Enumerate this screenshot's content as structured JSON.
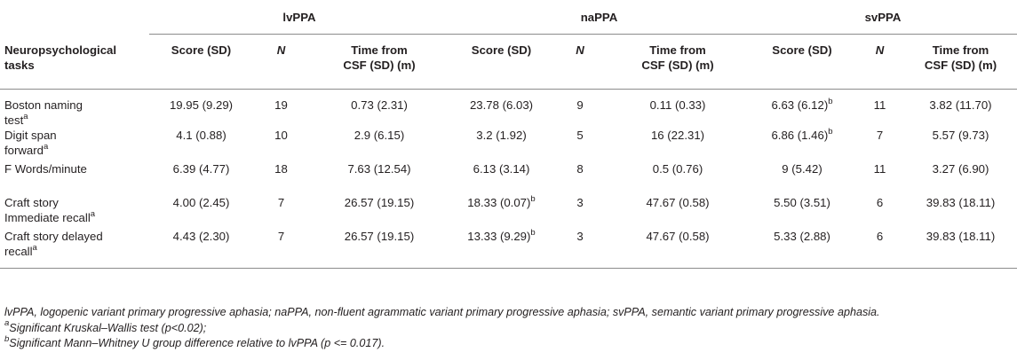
{
  "groups": [
    "lvPPA",
    "naPPA",
    "svPPA"
  ],
  "columns": {
    "task_line1": "Neuropsychological",
    "task_line2": "tasks",
    "score": "Score (SD)",
    "n": "N",
    "time_line1": "Time from",
    "time_line2": "CSF (SD) (m)"
  },
  "rows": [
    {
      "task_line1": "Boston naming",
      "task_line2": "test",
      "task_sup": "a",
      "lv": {
        "score": "19.95 (9.29)",
        "score_sup": "",
        "n": "19",
        "time": "0.73 (2.31)"
      },
      "na": {
        "score": "23.78 (6.03)",
        "score_sup": "",
        "n": "9",
        "time": "0.11 (0.33)"
      },
      "sv": {
        "score": "6.63 (6.12)",
        "score_sup": "b",
        "n": "11",
        "time": "3.82 (11.70)"
      }
    },
    {
      "task_line1": "Digit span",
      "task_line2": "forward",
      "task_sup": "a",
      "lv": {
        "score": "4.1 (0.88)",
        "score_sup": "",
        "n": "10",
        "time": "2.9 (6.15)"
      },
      "na": {
        "score": "3.2 (1.92)",
        "score_sup": "",
        "n": "5",
        "time": "16 (22.31)"
      },
      "sv": {
        "score": "6.86 (1.46)",
        "score_sup": "b",
        "n": "7",
        "time": "5.57 (9.73)"
      }
    },
    {
      "task_line1": "F Words/minute",
      "task_line2": "",
      "task_sup": "",
      "lv": {
        "score": "6.39 (4.77)",
        "score_sup": "",
        "n": "18",
        "time": "7.63 (12.54)"
      },
      "na": {
        "score": "6.13 (3.14)",
        "score_sup": "",
        "n": "8",
        "time": "0.5 (0.76)"
      },
      "sv": {
        "score": "9 (5.42)",
        "score_sup": "",
        "n": "11",
        "time": "3.27 (6.90)"
      }
    },
    {
      "task_line1": "Craft story",
      "task_line2": "Immediate recall",
      "task_sup": "a",
      "lv": {
        "score": "4.00 (2.45)",
        "score_sup": "",
        "n": "7",
        "time": "26.57 (19.15)"
      },
      "na": {
        "score": "18.33 (0.07)",
        "score_sup": "b",
        "n": "3",
        "time": "47.67 (0.58)"
      },
      "sv": {
        "score": "5.50 (3.51)",
        "score_sup": "",
        "n": "6",
        "time": "39.83 (18.11)"
      }
    },
    {
      "task_line1": "Craft story delayed",
      "task_line2": "recall",
      "task_sup": "a",
      "lv": {
        "score": "4.43 (2.30)",
        "score_sup": "",
        "n": "7",
        "time": "26.57 (19.15)"
      },
      "na": {
        "score": "13.33 (9.29)",
        "score_sup": "b",
        "n": "3",
        "time": "47.67 (0.58)"
      },
      "sv": {
        "score": "5.33 (2.88)",
        "score_sup": "",
        "n": "6",
        "time": "39.83 (18.11)"
      }
    }
  ],
  "footnotes": {
    "abbrev": "lvPPA, logopenic variant primary progressive aphasia; naPPA, non-fluent agrammatic variant primary progressive aphasia; svPPA, semantic variant primary progressive aphasia.",
    "a_mark": "a",
    "a_text": "Significant Kruskal–Wallis test (p<0.02);",
    "b_mark": "b",
    "b_text": "Significant Mann–Whitney U group difference relative to lvPPA (p <= 0.017)."
  }
}
